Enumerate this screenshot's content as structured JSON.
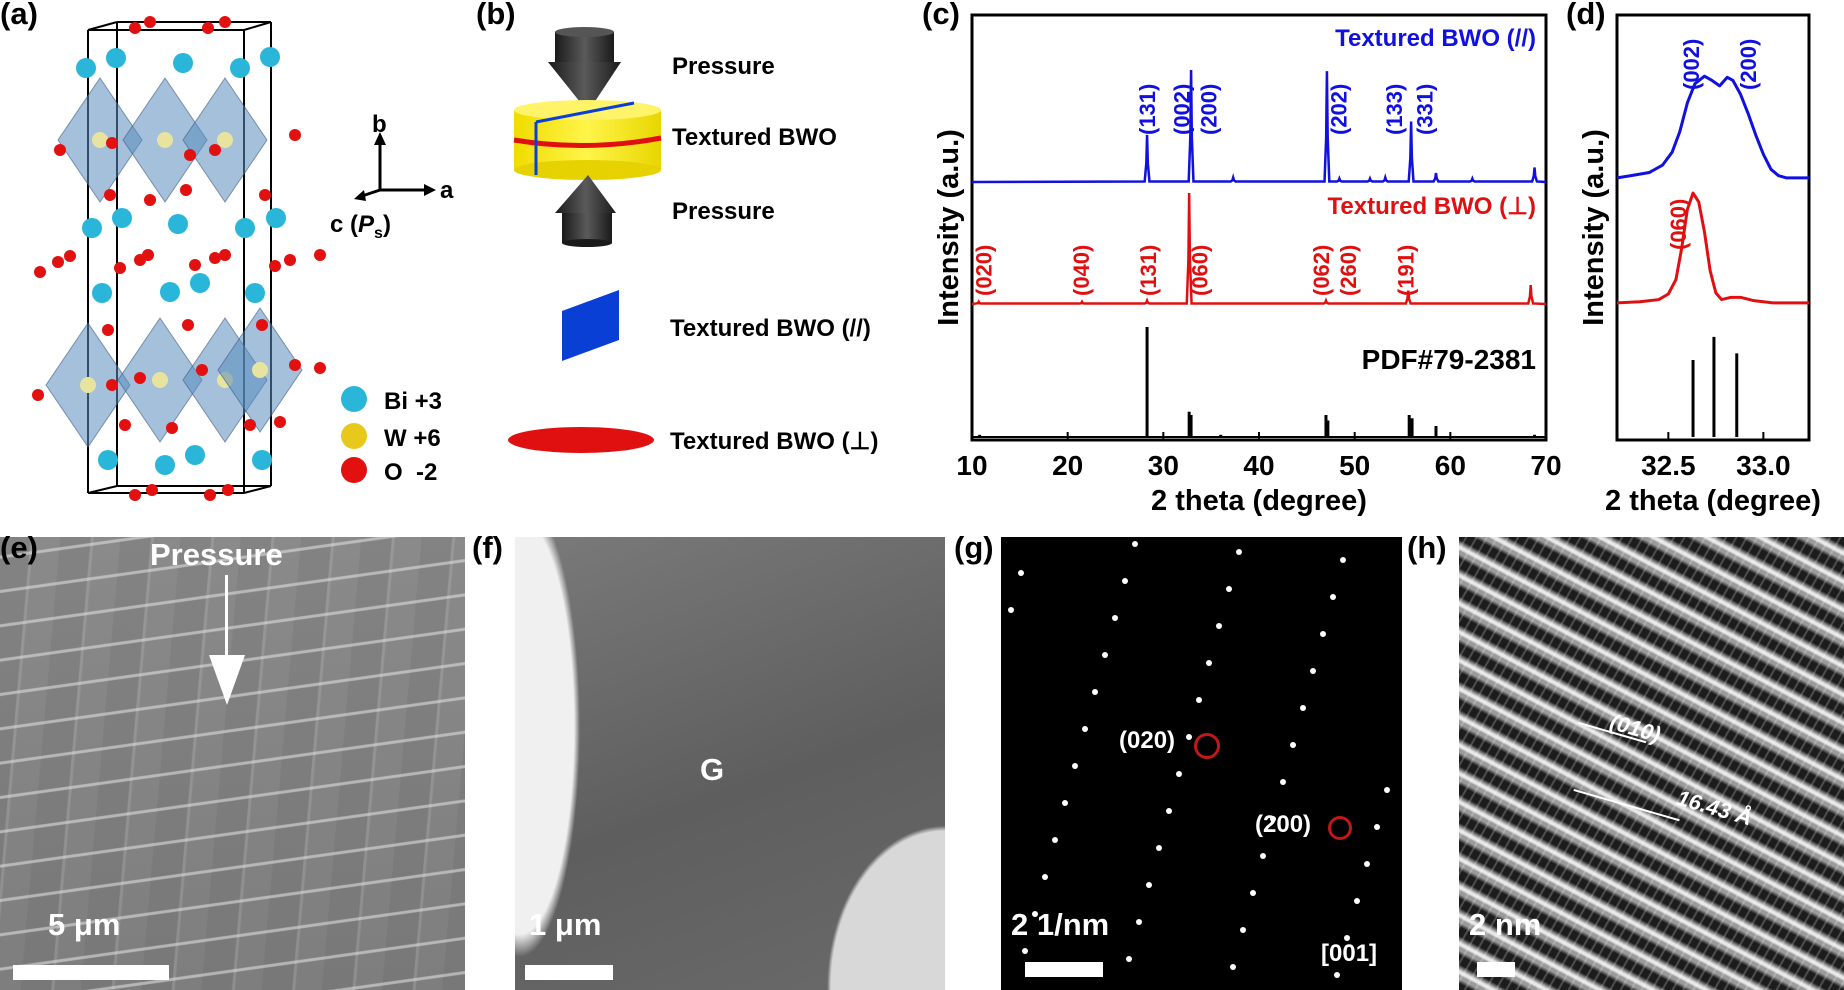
{
  "panels": {
    "a": {
      "label": "(a)",
      "axes": {
        "b": "b",
        "a": "a",
        "c": "c (",
        "ps_main": "P",
        "ps_sub": "s",
        "close": ")"
      },
      "legend": [
        {
          "label": "Bi +3",
          "color": "#29b6d8"
        },
        {
          "label": "W +6",
          "color": "#e8c81a"
        },
        {
          "label": "O  -2",
          "color": "#e31010"
        }
      ]
    },
    "b": {
      "label": "(b)",
      "pressure_top": "Pressure",
      "sample": "Textured BWO",
      "pressure_bottom": "Pressure",
      "parallel": "Textured BWO (//)",
      "perpendicular": "Textured BWO (⊥)",
      "colors": {
        "disk": "#f5e614",
        "parallel": "#0a3fd6",
        "perpendicular": "#e01010",
        "punch": "#2a2a2a"
      }
    },
    "c": {
      "label": "(c)"
    },
    "d": {
      "label": "(d)"
    },
    "e": {
      "label": "(e)",
      "arrow_text": "Pressure",
      "scale": "5 μm"
    },
    "f": {
      "label": "(f)",
      "grain": "G",
      "scale": "1 μm"
    },
    "g": {
      "label": "(g)",
      "spot1": "(020)",
      "spot2": "(200)",
      "scale": "2 1/nm",
      "zone": "[001]"
    },
    "h": {
      "label": "(h)",
      "plane": "(010)",
      "spacing": "16.43 Å",
      "scale": "2 nm"
    }
  },
  "chart_data": [
    {
      "id": "c",
      "type": "line",
      "xlabel": "2 theta (degree)",
      "ylabel": "Intensity (a.u.)",
      "xlim": [
        10,
        70
      ],
      "xticks": [
        10,
        20,
        30,
        40,
        50,
        60,
        70
      ],
      "series": [
        {
          "name": "Textured BWO (//)",
          "color": "#1010e0",
          "peaks": [
            [
              28.3,
              42
            ],
            [
              32.9,
              100
            ],
            [
              37.3,
              4
            ],
            [
              47.1,
              99
            ],
            [
              48.4,
              3
            ],
            [
              51.6,
              3
            ],
            [
              53.2,
              4
            ],
            [
              55.9,
              54
            ],
            [
              58.5,
              8
            ],
            [
              62.3,
              3
            ],
            [
              68.8,
              13
            ]
          ],
          "labels": [
            [
              "(131)",
              28.3
            ],
            [
              "(002)",
              31.9
            ],
            [
              "(200)",
              33.7
            ],
            [
              "(202)",
              48.3
            ],
            [
              "(133)",
              54.1
            ],
            [
              "(331)",
              57.3
            ]
          ]
        },
        {
          "name": "Textured BWO (⊥)",
          "color": "#e01010",
          "peaks": [
            [
              10.7,
              2
            ],
            [
              21.5,
              2
            ],
            [
              28.3,
              3
            ],
            [
              32.7,
              100
            ],
            [
              47.0,
              3
            ],
            [
              55.6,
              12
            ],
            [
              68.4,
              17
            ]
          ],
          "labels": [
            [
              "(020)",
              11.2
            ],
            [
              "(040)",
              21.4
            ],
            [
              "(131)",
              28.4
            ],
            [
              "(060)",
              33.8
            ],
            [
              "(062)",
              46.5
            ],
            [
              "(260)",
              48.0
            ],
            [
              "(191)",
              55.3
            ]
          ]
        },
        {
          "name": "PDF#79-2381",
          "color": "#000000",
          "peaks": [
            [
              10.8,
              2
            ],
            [
              28.3,
              100
            ],
            [
              32.7,
              23
            ],
            [
              32.9,
              20
            ],
            [
              36.0,
              2
            ],
            [
              47.0,
              20
            ],
            [
              47.2,
              15
            ],
            [
              55.7,
              20
            ],
            [
              56.0,
              17
            ],
            [
              58.5,
              10
            ],
            [
              68.8,
              2
            ]
          ],
          "labels": []
        }
      ]
    },
    {
      "id": "d",
      "type": "line",
      "xlabel": "2 theta (degree)",
      "ylabel": "Intensity (a.u.)",
      "xlim": [
        32.23,
        33.24
      ],
      "xticks": [
        32.5,
        33.0
      ],
      "xtick_labels": [
        "32.5",
        "33.0"
      ],
      "series": [
        {
          "name": "Textured BWO (//)",
          "color": "#1010e0",
          "x": [
            32.23,
            32.3,
            32.4,
            32.47,
            32.52,
            32.56,
            32.6,
            32.64,
            32.69,
            32.73,
            32.77,
            32.81,
            32.84,
            32.88,
            32.92,
            32.96,
            33.0,
            33.04,
            33.08,
            33.12,
            33.24
          ],
          "y": [
            2,
            4,
            7,
            14,
            26,
            45,
            72,
            90,
            97,
            93,
            88,
            96,
            93,
            80,
            62,
            42,
            24,
            10,
            4,
            2,
            2
          ],
          "labels": [
            [
              "(002)",
              32.62
            ],
            [
              "(200)",
              32.92
            ]
          ]
        },
        {
          "name": "Textured BWO (⊥)",
          "color": "#e01010",
          "x": [
            32.23,
            32.35,
            32.45,
            32.5,
            32.54,
            32.57,
            32.6,
            32.63,
            32.66,
            32.69,
            32.72,
            32.75,
            32.78,
            32.83,
            32.88,
            32.95,
            33.05,
            33.24
          ],
          "y": [
            1,
            2,
            4,
            9,
            22,
            50,
            85,
            100,
            92,
            65,
            30,
            10,
            4,
            6,
            6,
            3,
            1,
            1
          ],
          "labels": [
            [
              "(060)",
              32.55
            ]
          ]
        },
        {
          "name": "PDF#79-2381",
          "color": "#000000",
          "sticks": [
            [
              32.63,
              70
            ],
            [
              32.74,
              91
            ],
            [
              32.86,
              76
            ]
          ]
        }
      ]
    }
  ],
  "chart_text": {
    "c_legend_par": "Textured BWO (//)",
    "c_legend_perp": "Textured BWO (⊥)",
    "c_pdf": "PDF#79-2381"
  }
}
